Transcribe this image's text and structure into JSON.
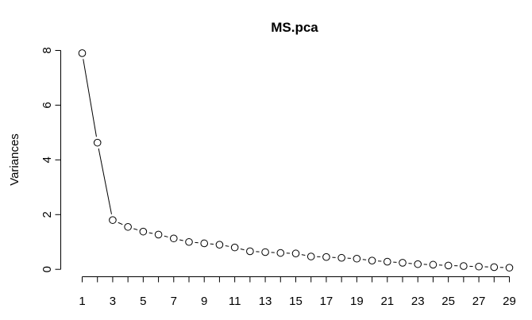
{
  "chart_data": {
    "type": "line",
    "title": "MS.pca",
    "xlabel": "",
    "ylabel": "Variances",
    "x": [
      1,
      2,
      3,
      4,
      5,
      6,
      7,
      8,
      9,
      10,
      11,
      12,
      13,
      14,
      15,
      16,
      17,
      18,
      19,
      20,
      21,
      22,
      23,
      24,
      25,
      26,
      27,
      28,
      29
    ],
    "values": [
      7.9,
      4.63,
      1.8,
      1.55,
      1.38,
      1.27,
      1.13,
      1.0,
      0.95,
      0.9,
      0.8,
      0.66,
      0.63,
      0.6,
      0.58,
      0.47,
      0.45,
      0.42,
      0.39,
      0.32,
      0.28,
      0.24,
      0.19,
      0.17,
      0.14,
      0.12,
      0.1,
      0.08,
      0.06
    ],
    "x_ticks": [
      1,
      3,
      5,
      7,
      9,
      11,
      13,
      15,
      17,
      19,
      21,
      23,
      25,
      27,
      29
    ],
    "y_ticks": [
      0,
      2,
      4,
      6,
      8
    ],
    "xlim": [
      1,
      29
    ],
    "ylim": [
      0,
      8
    ],
    "grid": false,
    "legend": "none",
    "marker": "open-circle",
    "colors": {
      "line": "#000000",
      "marker_fill": "#ffffff",
      "axis": "#000000",
      "background": "#ffffff"
    }
  }
}
